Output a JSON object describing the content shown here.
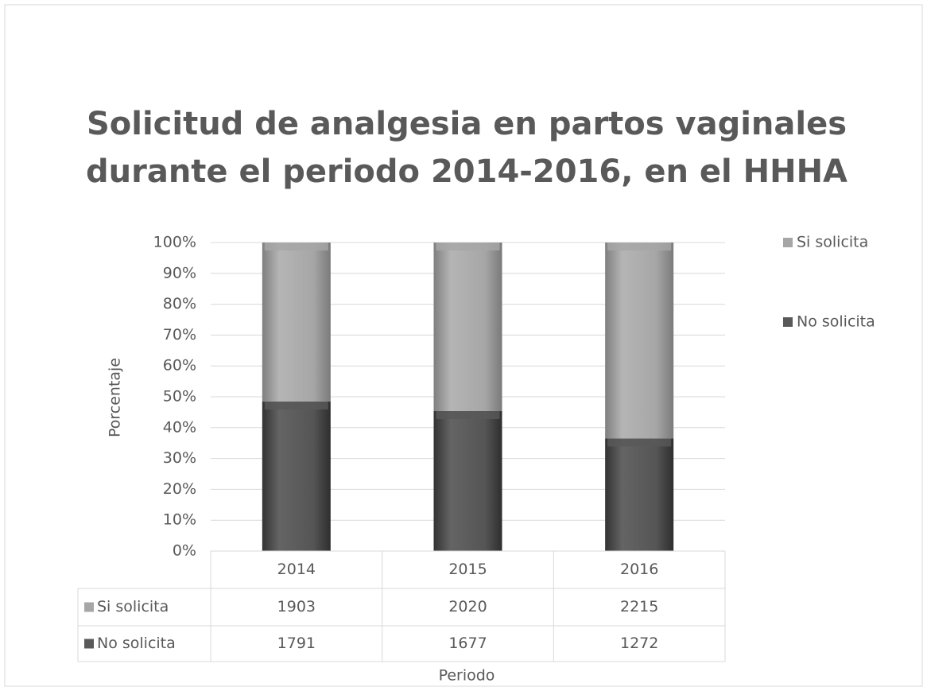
{
  "chart_data": {
    "type": "bar",
    "stacking": "percent",
    "title": [
      "Solicitud de analgesia en partos vaginales",
      "durante el periodo 2014-2016, en el HHHA"
    ],
    "xlabel": "Periodo",
    "ylabel": "Porcentaje",
    "categories": [
      "2014",
      "2015",
      "2016"
    ],
    "series": [
      {
        "name": "Si solicita",
        "color": "#a6a6a6",
        "values": [
          1903,
          2020,
          2215
        ]
      },
      {
        "name": "No solicita",
        "color": "#595959",
        "values": [
          1791,
          1677,
          1272
        ]
      }
    ],
    "ylim": [
      0,
      100
    ],
    "yticks": [
      {
        "value": 0,
        "label": "0%"
      },
      {
        "value": 10,
        "label": "10%"
      },
      {
        "value": 20,
        "label": "20%"
      },
      {
        "value": 30,
        "label": "30%"
      },
      {
        "value": 40,
        "label": "40%"
      },
      {
        "value": 50,
        "label": "50%"
      },
      {
        "value": 60,
        "label": "60%"
      },
      {
        "value": 70,
        "label": "70%"
      },
      {
        "value": 80,
        "label": "80%"
      },
      {
        "value": 90,
        "label": "90%"
      },
      {
        "value": 100,
        "label": "100%"
      }
    ],
    "grid": true,
    "legend": "right",
    "data_table": true
  }
}
